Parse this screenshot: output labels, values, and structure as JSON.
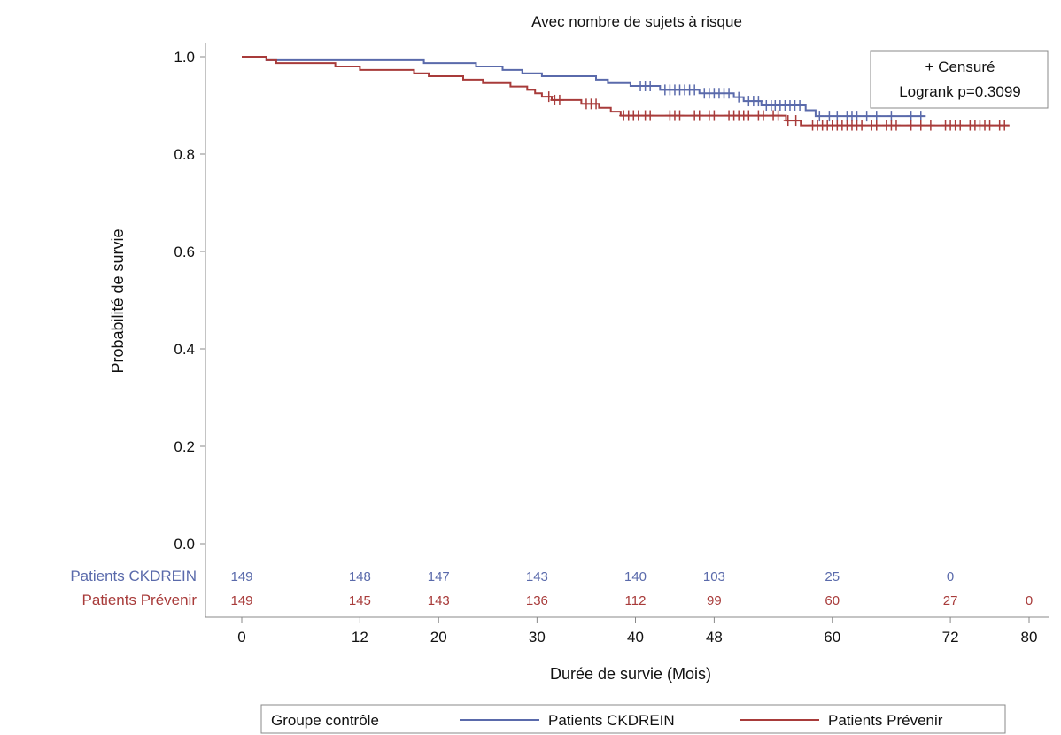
{
  "chart_data": {
    "type": "line",
    "subtitle": "Avec nombre de sujets à risque",
    "xlabel": "Durée de survie (Mois)",
    "ylabel": "Probabilité de survie",
    "xlim": [
      0,
      80
    ],
    "ylim": [
      0,
      1.0
    ],
    "x_ticks": [
      0,
      12,
      20,
      30,
      40,
      48,
      60,
      72,
      80
    ],
    "y_ticks": [
      0.0,
      0.2,
      0.4,
      0.6,
      0.8,
      1.0
    ],
    "y_tick_labels": [
      "0.0",
      "0.2",
      "0.4",
      "0.6",
      "0.8",
      "1.0"
    ],
    "grid": false,
    "inset_box": {
      "censor_label": "+ Censuré",
      "logrank": "Logrank p=0.3099"
    },
    "colors": {
      "ckdrein": "#5a6aab",
      "prevenir": "#a83b3a",
      "axis": "#888888"
    },
    "series": [
      {
        "name": "Patients CKDREIN",
        "color": "#5a6aab",
        "steps": [
          [
            0,
            1.0
          ],
          [
            2.5,
            1.0
          ],
          [
            2.5,
            0.993
          ],
          [
            18.5,
            0.993
          ],
          [
            18.5,
            0.987
          ],
          [
            23.8,
            0.987
          ],
          [
            23.8,
            0.98
          ],
          [
            26.5,
            0.98
          ],
          [
            26.5,
            0.973
          ],
          [
            28.5,
            0.973
          ],
          [
            28.5,
            0.966
          ],
          [
            30.5,
            0.966
          ],
          [
            30.5,
            0.96
          ],
          [
            36.0,
            0.96
          ],
          [
            36.0,
            0.953
          ],
          [
            37.2,
            0.953
          ],
          [
            37.2,
            0.946
          ],
          [
            39.5,
            0.946
          ],
          [
            39.5,
            0.94
          ],
          [
            42.5,
            0.94
          ],
          [
            42.5,
            0.932
          ],
          [
            46.5,
            0.932
          ],
          [
            46.5,
            0.925
          ],
          [
            50.0,
            0.925
          ],
          [
            50.0,
            0.917
          ],
          [
            51.0,
            0.917
          ],
          [
            51.0,
            0.909
          ],
          [
            52.8,
            0.909
          ],
          [
            52.8,
            0.9
          ],
          [
            57.3,
            0.9
          ],
          [
            57.3,
            0.89
          ],
          [
            58.3,
            0.89
          ],
          [
            58.3,
            0.878
          ],
          [
            69.5,
            0.878
          ]
        ],
        "censor_times": [
          40.5,
          41.0,
          41.5,
          43.0,
          43.5,
          44.0,
          44.5,
          45.0,
          45.5,
          46.0,
          47.0,
          47.5,
          48.0,
          48.5,
          49.0,
          49.5,
          50.5,
          51.5,
          52.0,
          52.5,
          53.3,
          53.8,
          54.2,
          54.7,
          55.2,
          55.7,
          56.2,
          56.7,
          58.7,
          59.7,
          60.5,
          61.5,
          62.0,
          62.5,
          63.5,
          64.5,
          66.0,
          68.0,
          69.0
        ],
        "at_risk": [
          {
            "x": 0,
            "n": "149"
          },
          {
            "x": 12,
            "n": "148"
          },
          {
            "x": 20,
            "n": "147"
          },
          {
            "x": 30,
            "n": "143"
          },
          {
            "x": 40,
            "n": "140"
          },
          {
            "x": 48,
            "n": "103"
          },
          {
            "x": 60,
            "n": "25"
          },
          {
            "x": 72,
            "n": "0"
          }
        ]
      },
      {
        "name": "Patients Prévenir",
        "color": "#a83b3a",
        "steps": [
          [
            0,
            1.0
          ],
          [
            2.5,
            1.0
          ],
          [
            2.5,
            0.993
          ],
          [
            3.5,
            0.993
          ],
          [
            3.5,
            0.987
          ],
          [
            9.5,
            0.987
          ],
          [
            9.5,
            0.98
          ],
          [
            12.0,
            0.98
          ],
          [
            12.0,
            0.973
          ],
          [
            17.5,
            0.973
          ],
          [
            17.5,
            0.966
          ],
          [
            19.0,
            0.966
          ],
          [
            19.0,
            0.96
          ],
          [
            22.5,
            0.96
          ],
          [
            22.5,
            0.953
          ],
          [
            24.5,
            0.953
          ],
          [
            24.5,
            0.946
          ],
          [
            27.3,
            0.946
          ],
          [
            27.3,
            0.939
          ],
          [
            29.0,
            0.939
          ],
          [
            29.0,
            0.932
          ],
          [
            29.8,
            0.932
          ],
          [
            29.8,
            0.925
          ],
          [
            30.5,
            0.925
          ],
          [
            30.5,
            0.918
          ],
          [
            31.5,
            0.918
          ],
          [
            31.5,
            0.911
          ],
          [
            34.5,
            0.911
          ],
          [
            34.5,
            0.903
          ],
          [
            36.3,
            0.903
          ],
          [
            36.3,
            0.895
          ],
          [
            37.5,
            0.895
          ],
          [
            37.5,
            0.887
          ],
          [
            38.5,
            0.887
          ],
          [
            38.5,
            0.879
          ],
          [
            55.3,
            0.879
          ],
          [
            55.3,
            0.869
          ],
          [
            56.8,
            0.869
          ],
          [
            56.8,
            0.859
          ],
          [
            78.0,
            0.859
          ]
        ],
        "censor_times": [
          31.2,
          31.8,
          32.3,
          35.0,
          35.5,
          36.0,
          38.8,
          39.3,
          39.8,
          40.3,
          41.0,
          41.5,
          43.5,
          44.0,
          44.5,
          46.0,
          46.5,
          47.5,
          48.0,
          49.5,
          50.0,
          50.5,
          51.0,
          51.5,
          52.5,
          53.0,
          54.0,
          54.5,
          55.5,
          56.3,
          58.0,
          58.5,
          59.0,
          59.5,
          60.0,
          60.5,
          61.0,
          61.5,
          62.0,
          62.5,
          63.0,
          64.0,
          64.5,
          65.5,
          66.0,
          66.5,
          68.0,
          69.0,
          70.0,
          71.5,
          72.0,
          72.5,
          73.0,
          74.0,
          74.5,
          75.0,
          75.5,
          76.0,
          77.0,
          77.5
        ],
        "at_risk": [
          {
            "x": 0,
            "n": "149"
          },
          {
            "x": 12,
            "n": "145"
          },
          {
            "x": 20,
            "n": "143"
          },
          {
            "x": 30,
            "n": "136"
          },
          {
            "x": 40,
            "n": "112"
          },
          {
            "x": 48,
            "n": "99"
          },
          {
            "x": 60,
            "n": "60"
          },
          {
            "x": 72,
            "n": "27"
          },
          {
            "x": 80,
            "n": "0"
          }
        ]
      }
    ],
    "legend": {
      "title": "Groupe contrôle",
      "position": "bottom"
    }
  }
}
